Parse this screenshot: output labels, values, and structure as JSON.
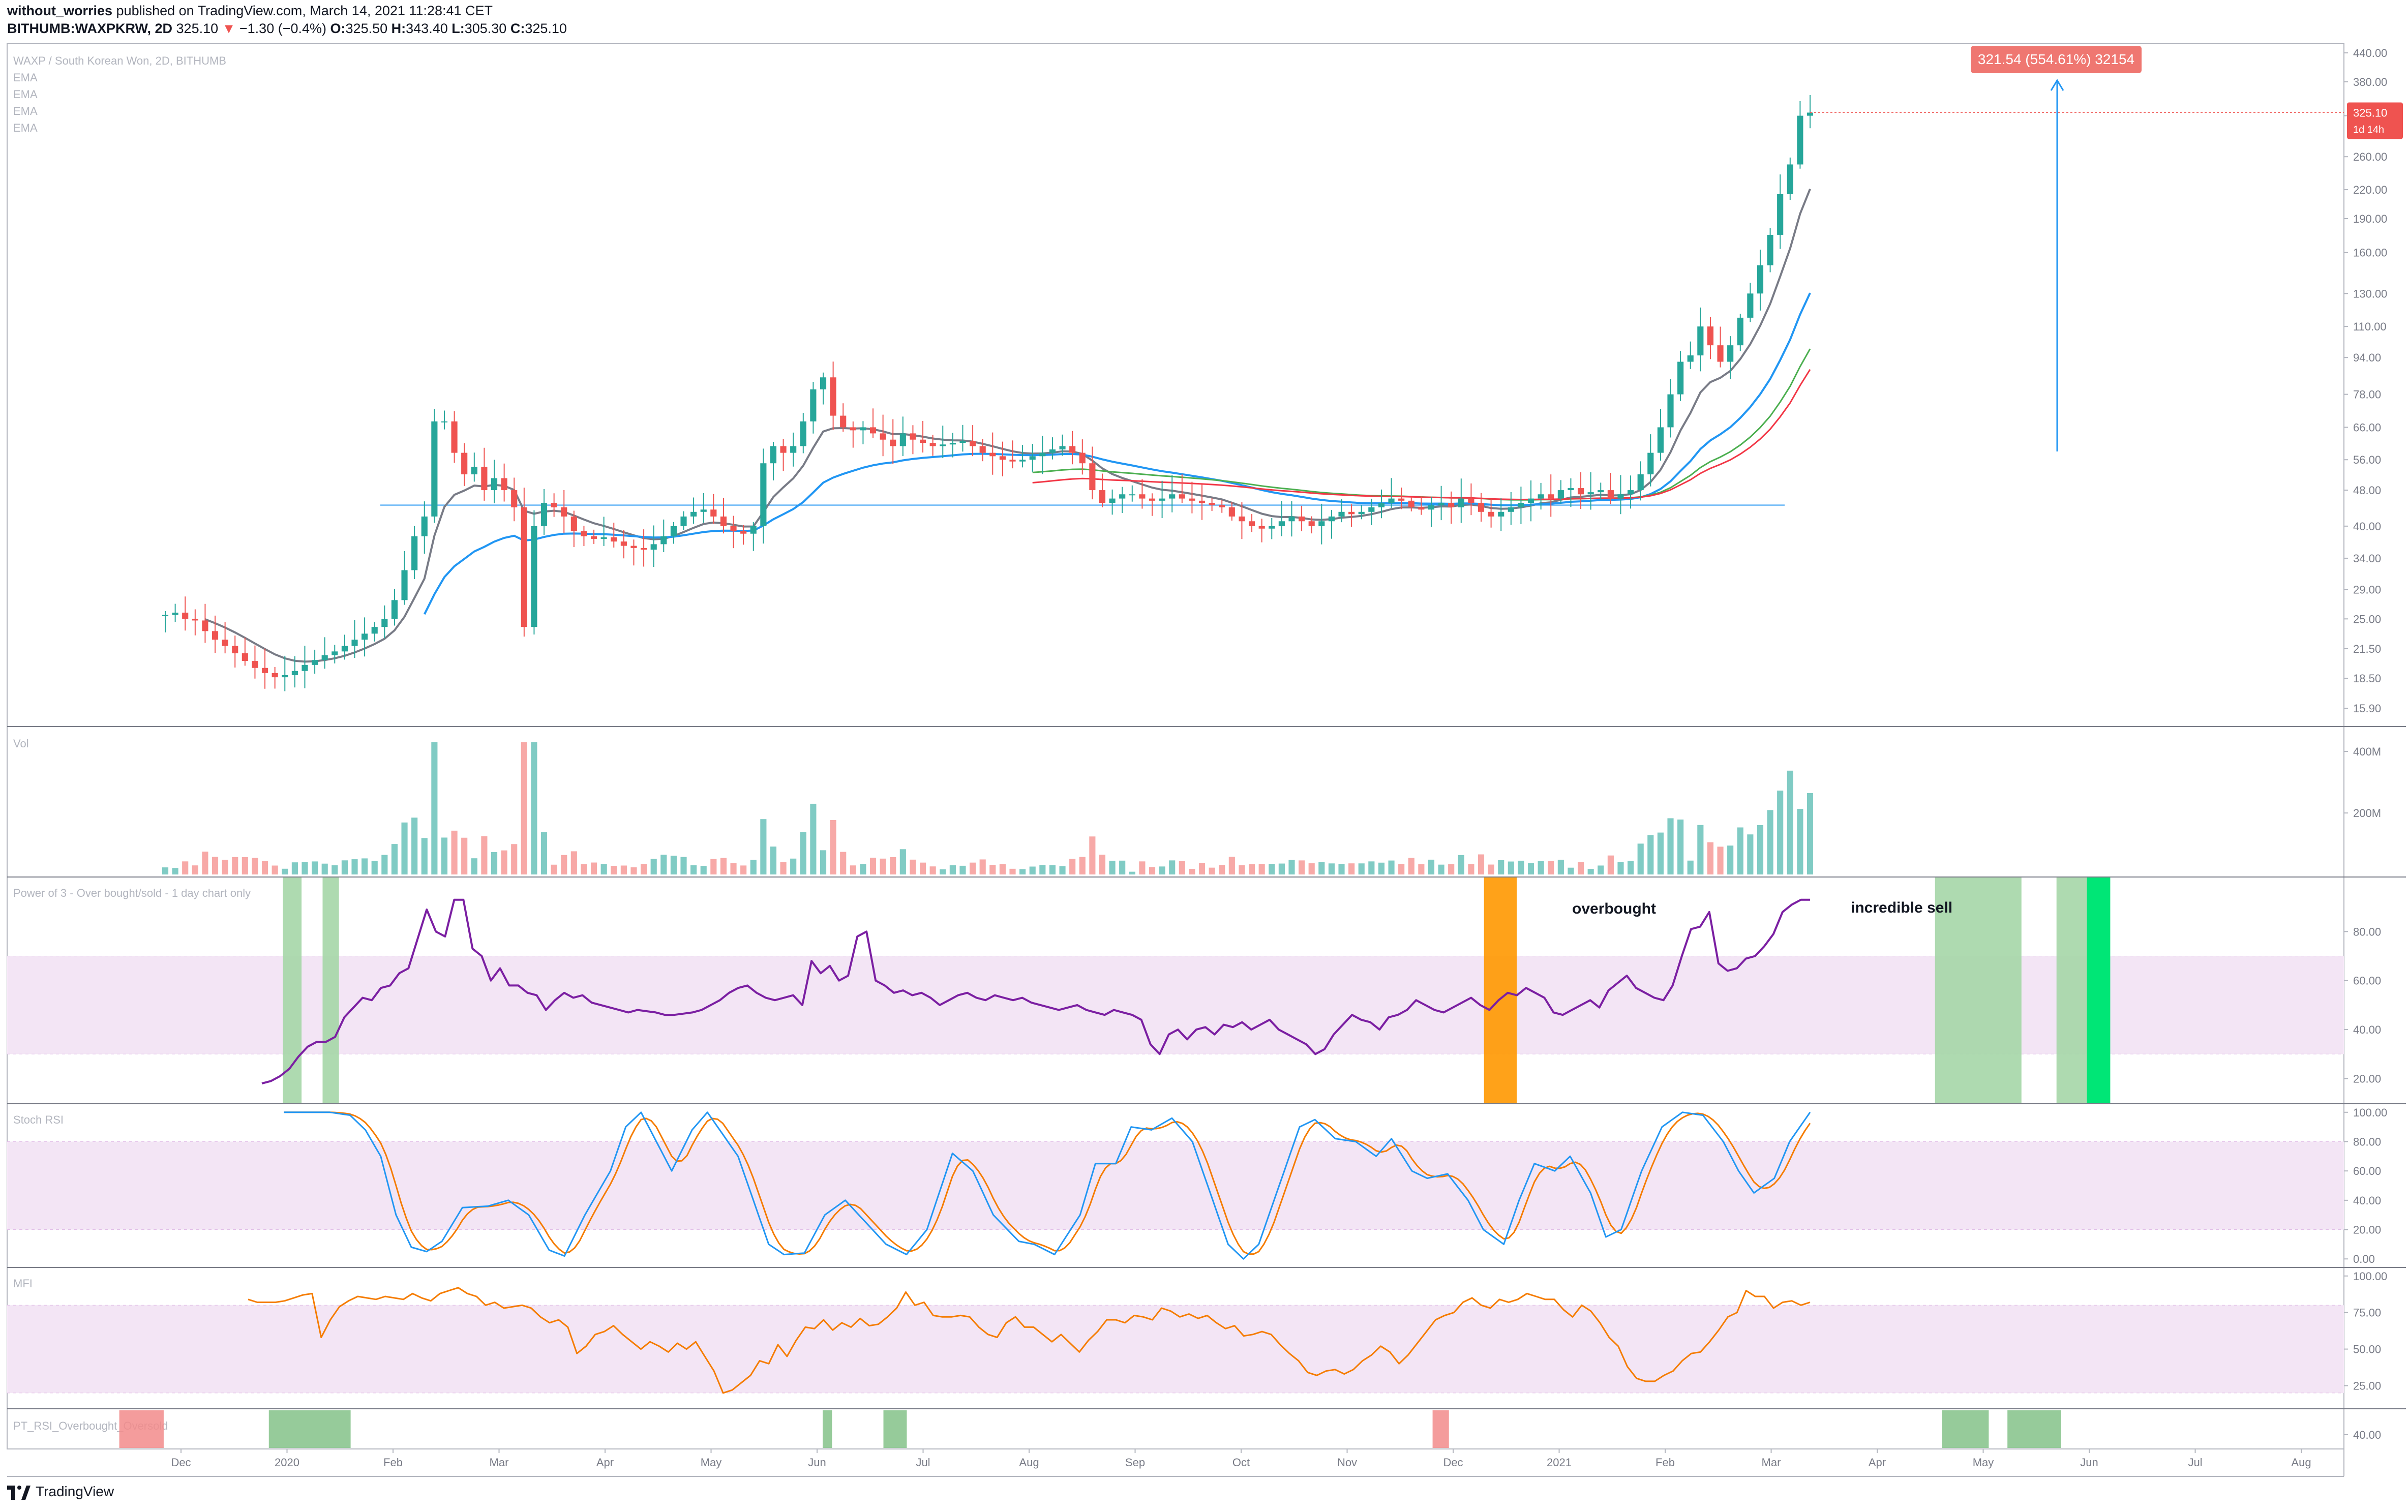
{
  "header": {
    "author": "without_worries",
    "published": "published on TradingView.com, March 14, 2021 11:28:41 CET",
    "symbol": "BITHUMB:WAXPKRW, 2D",
    "last": "325.10",
    "change": "−1.30 (−0.4%)",
    "o_label": "O:",
    "o": "325.50",
    "h_label": "H:",
    "h": "343.40",
    "l_label": "L:",
    "l": "305.30",
    "c_label": "C:",
    "c": "325.10"
  },
  "footer": {
    "brand": "TradingView"
  },
  "colors": {
    "up": "#26a69a",
    "down": "#ef5350",
    "ema_fast": "#787b86",
    "ema_blue": "#2196f3",
    "ema_green": "#4caf50",
    "ema_red": "#f23645",
    "purple": "#7b1fa2",
    "band": "#f3e5f5",
    "stoch_k": "#2196f3",
    "stoch_d": "#f57c00",
    "mfi": "#f57c00",
    "ob_green": "#a5d6a7",
    "ob_bright": "#00e676",
    "os_orange": "#ff9800"
  },
  "chart_data": [
    {
      "panel": "price",
      "type": "candlestick",
      "title": "WAXP / South Korean Won, 2D, BITHUMB",
      "indicator_labels": [
        "EMA",
        "EMA",
        "EMA",
        "EMA"
      ],
      "scale": "log",
      "y_ticks": [
        "440.00",
        "380.00",
        "320.00",
        "260.00",
        "220.00",
        "190.00",
        "160.00",
        "130.00",
        "110.00",
        "94.00",
        "78.00",
        "66.00",
        "56.00",
        "48.00",
        "40.00",
        "34.00",
        "29.00",
        "25.00",
        "21.50",
        "18.50",
        "15.90"
      ],
      "x_ticks": [
        "Dec",
        "2020",
        "Feb",
        "Mar",
        "Apr",
        "May",
        "Jun",
        "Jul",
        "Aug",
        "Sep",
        "Oct",
        "Nov",
        "Dec",
        "2021",
        "Feb",
        "Mar",
        "Apr",
        "May",
        "Jun",
        "Jul",
        "Aug"
      ],
      "last_price_label": "325.10",
      "countdown_label": "1d 14h",
      "measure_label": "321.54 (554.61%) 32154",
      "series_close": [
        25.5,
        25.8,
        25.0,
        24.8,
        23.5,
        22.5,
        21.8,
        21.0,
        20.2,
        19.5,
        19.0,
        18.6,
        18.8,
        19.2,
        19.8,
        20.3,
        20.8,
        21.2,
        21.8,
        22.5,
        23.2,
        24.0,
        25.0,
        27.5,
        32,
        38,
        42,
        68,
        68,
        58,
        52,
        54,
        48,
        51,
        48,
        44,
        24,
        40,
        45,
        44,
        42,
        39,
        38,
        37.5,
        37.8,
        37.0,
        36.2,
        35.8,
        35.5,
        36.5,
        38,
        40,
        42,
        43,
        43.5,
        42,
        40,
        39,
        38.5,
        40,
        55,
        60,
        58,
        60,
        68,
        80,
        85,
        70,
        66,
        65,
        66,
        64,
        62,
        60,
        64,
        62,
        61,
        60,
        60.5,
        61,
        61.5,
        60,
        58,
        57,
        56,
        55.5,
        56,
        57,
        58,
        59,
        60,
        58,
        55,
        48,
        45,
        46,
        47,
        47,
        46,
        45.5,
        46,
        47,
        46,
        45.5,
        45,
        44.5,
        44,
        42,
        41,
        40,
        39.5,
        40,
        41,
        42,
        41,
        40,
        41,
        42,
        43,
        42.5,
        43,
        44,
        45,
        46,
        45.5,
        44,
        43.5,
        44.5,
        45,
        44,
        46,
        45,
        43,
        42,
        43,
        44,
        45,
        46,
        47,
        46,
        48,
        48.5,
        47,
        47.5,
        48,
        46,
        47,
        48,
        52,
        58,
        66,
        78,
        92,
        95,
        110,
        100,
        92,
        100,
        115,
        130,
        150,
        175,
        215,
        250,
        320,
        325.1
      ],
      "ema_gray_start": 0.03,
      "ema_blue_start": 0.16,
      "ema_green_start": 0.53,
      "ema_red_start": 0.53,
      "horizontal_level": 44.5
    },
    {
      "panel": "volume",
      "type": "bar",
      "title": "Vol",
      "y_ticks": [
        "400M",
        "200M"
      ]
    },
    {
      "panel": "power_of_3",
      "type": "line",
      "title": "Power of 3 - Over bought/sold - 1 day chart only",
      "y_ticks": [
        "80.00",
        "60.00",
        "40.00",
        "20.00"
      ],
      "ylim": [
        12,
        100
      ],
      "band": [
        30,
        70
      ],
      "annotations": [
        "overbought",
        "incredible sell"
      ],
      "values": [
        18,
        19,
        21,
        24,
        29,
        33,
        35,
        35,
        37,
        45,
        49,
        53,
        52,
        57,
        58,
        63,
        65,
        77,
        89,
        80,
        78,
        93,
        93,
        73,
        70,
        60,
        65,
        58,
        58,
        55,
        54,
        48,
        52,
        55,
        53,
        54,
        51,
        50,
        49,
        48,
        47,
        48,
        47.5,
        47,
        46,
        46,
        46.5,
        47,
        48,
        50,
        52,
        55,
        57,
        58,
        55,
        53,
        52,
        53,
        54,
        50,
        68,
        63,
        66,
        60,
        62,
        78,
        80,
        60,
        58,
        55,
        56,
        54,
        55,
        53,
        50,
        52,
        54,
        55,
        53,
        52,
        54,
        53,
        52,
        53,
        51,
        50,
        49,
        48,
        49,
        50,
        48,
        47,
        46,
        48,
        47,
        46,
        44,
        34,
        30,
        38,
        40,
        36,
        40,
        41,
        38,
        42,
        41,
        43,
        40,
        42,
        44,
        40,
        38,
        36,
        34,
        30,
        32,
        38,
        42,
        46,
        44,
        43,
        40,
        45,
        46,
        48,
        52,
        50,
        48,
        47,
        49,
        51,
        53,
        50,
        48,
        52,
        55,
        54,
        57,
        55,
        53,
        47,
        46,
        48,
        50,
        52,
        49,
        56,
        59,
        62,
        57,
        55,
        53,
        52,
        58,
        70,
        81,
        82,
        88,
        67,
        64,
        65,
        69,
        70,
        74,
        79,
        88,
        91,
        93,
        93
      ],
      "shade_ob_green": [
        [
          0.118,
          0.126
        ],
        [
          0.135,
          0.142
        ],
        [
          0.825,
          0.862
        ],
        [
          0.877,
          0.89
        ]
      ],
      "shade_ob_bright": [
        [
          0.89,
          0.9
        ]
      ],
      "shade_os_orange": [
        [
          0.632,
          0.646
        ]
      ]
    },
    {
      "panel": "stoch_rsi",
      "type": "line",
      "title": "Stoch RSI",
      "y_ticks": [
        "100.00",
        "80.00",
        "60.00",
        "40.00",
        "20.00",
        "0.00"
      ],
      "ylim": [
        -2,
        102
      ],
      "band": [
        20,
        80
      ]
    },
    {
      "panel": "mfi",
      "type": "line",
      "title": "MFI",
      "y_ticks": [
        "100.00",
        "75.00",
        "50.00",
        "25.00"
      ],
      "ylim": [
        13,
        102
      ],
      "band": [
        20,
        80
      ],
      "values": [
        84,
        82,
        82,
        82,
        83,
        85,
        87,
        88,
        58,
        70,
        79,
        83,
        86,
        85,
        84,
        86,
        85,
        84,
        88,
        85,
        83,
        88,
        90,
        92,
        88,
        86,
        80,
        82,
        78,
        79,
        80,
        78,
        72,
        68,
        70,
        65,
        47,
        52,
        60,
        62,
        66,
        60,
        55,
        50,
        55,
        52,
        48,
        54,
        50,
        55,
        45,
        35,
        20,
        22,
        27,
        32,
        42,
        40,
        53,
        45,
        56,
        65,
        64,
        70,
        63,
        68,
        65,
        71,
        66,
        67,
        72,
        78,
        89,
        80,
        82,
        73,
        72,
        72,
        73,
        72,
        65,
        60,
        58,
        68,
        72,
        65,
        65,
        60,
        55,
        60,
        54,
        48,
        56,
        62,
        70,
        70,
        68,
        73,
        72,
        70,
        78,
        76,
        72,
        74,
        71,
        73,
        68,
        64,
        66,
        59,
        60,
        62,
        60,
        53,
        47,
        42,
        34,
        32,
        35,
        36,
        33,
        36,
        42,
        46,
        52,
        48,
        40,
        46,
        54,
        62,
        70,
        73,
        75,
        82,
        85,
        80,
        78,
        84,
        82,
        84,
        88,
        86,
        84,
        84,
        77,
        72,
        80,
        76,
        68,
        58,
        52,
        38,
        30,
        28,
        28,
        32,
        35,
        42,
        47,
        48,
        55,
        63,
        72,
        75,
        90,
        86,
        86,
        78,
        82,
        83,
        80,
        82
      ],
      "_series_mfi_extra_points_note": ""
    },
    {
      "panel": "pt_rsi",
      "type": "bar",
      "title": "PT_RSI_Overbought_Oversold",
      "y_ticks": [
        "40.00"
      ],
      "red_zones": [
        [
          0.048,
          0.067
        ],
        [
          0.61,
          0.617
        ]
      ],
      "green_zones": [
        [
          0.112,
          0.147
        ],
        [
          0.349,
          0.353
        ],
        [
          0.375,
          0.385
        ],
        [
          0.828,
          0.848
        ],
        [
          0.856,
          0.879
        ]
      ]
    }
  ]
}
